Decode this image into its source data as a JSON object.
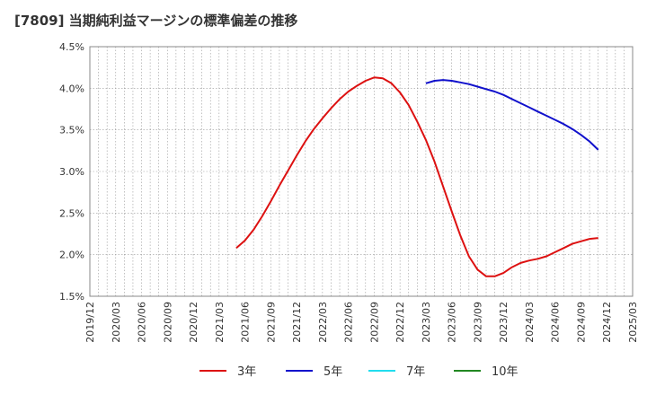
{
  "chart_data": {
    "type": "line",
    "title": "[7809]  当期純利益マージンの標準偏差の推移",
    "xlabel": "",
    "ylabel": "",
    "ylim": [
      1.5,
      4.5
    ],
    "grid": true,
    "legend_position": "bottom",
    "x_ticks": [
      "2019/12",
      "2020/03",
      "2020/06",
      "2020/09",
      "2020/12",
      "2021/03",
      "2021/06",
      "2021/09",
      "2021/12",
      "2022/03",
      "2022/06",
      "2022/09",
      "2022/12",
      "2023/03",
      "2023/06",
      "2023/09",
      "2023/12",
      "2024/03",
      "2024/06",
      "2024/09",
      "2024/12",
      "2025/03"
    ],
    "y_ticks": [
      {
        "value": 1.5,
        "label": "1.5%"
      },
      {
        "value": 2.0,
        "label": "2.0%"
      },
      {
        "value": 2.5,
        "label": "2.5%"
      },
      {
        "value": 3.0,
        "label": "3.0%"
      },
      {
        "value": 3.5,
        "label": "3.5%"
      },
      {
        "value": 4.0,
        "label": "4.0%"
      },
      {
        "value": 4.5,
        "label": "4.5%"
      }
    ],
    "series": [
      {
        "name": "3年",
        "color": "#dd1111",
        "points": [
          [
            "2021/05",
            2.08
          ],
          [
            "2021/06",
            2.17
          ],
          [
            "2021/07",
            2.3
          ],
          [
            "2021/08",
            2.46
          ],
          [
            "2021/09",
            2.64
          ],
          [
            "2021/10",
            2.83
          ],
          [
            "2021/11",
            3.01
          ],
          [
            "2021/12",
            3.19
          ],
          [
            "2022/01",
            3.36
          ],
          [
            "2022/02",
            3.51
          ],
          [
            "2022/03",
            3.64
          ],
          [
            "2022/04",
            3.76
          ],
          [
            "2022/05",
            3.87
          ],
          [
            "2022/06",
            3.96
          ],
          [
            "2022/07",
            4.03
          ],
          [
            "2022/08",
            4.09
          ],
          [
            "2022/09",
            4.13
          ],
          [
            "2022/10",
            4.12
          ],
          [
            "2022/11",
            4.06
          ],
          [
            "2022/12",
            3.95
          ],
          [
            "2023/01",
            3.8
          ],
          [
            "2023/02",
            3.6
          ],
          [
            "2023/03",
            3.38
          ],
          [
            "2023/04",
            3.12
          ],
          [
            "2023/05",
            2.82
          ],
          [
            "2023/06",
            2.52
          ],
          [
            "2023/07",
            2.23
          ],
          [
            "2023/08",
            1.98
          ],
          [
            "2023/09",
            1.82
          ],
          [
            "2023/10",
            1.74
          ],
          [
            "2023/11",
            1.74
          ],
          [
            "2023/12",
            1.78
          ],
          [
            "2024/01",
            1.85
          ],
          [
            "2024/02",
            1.9
          ],
          [
            "2024/03",
            1.93
          ],
          [
            "2024/04",
            1.95
          ],
          [
            "2024/05",
            1.98
          ],
          [
            "2024/06",
            2.03
          ],
          [
            "2024/07",
            2.08
          ],
          [
            "2024/08",
            2.13
          ],
          [
            "2024/09",
            2.16
          ],
          [
            "2024/10",
            2.19
          ],
          [
            "2024/11",
            2.2
          ]
        ]
      },
      {
        "name": "5年",
        "color": "#1111cc",
        "points": [
          [
            "2023/03",
            4.06
          ],
          [
            "2023/04",
            4.09
          ],
          [
            "2023/05",
            4.1
          ],
          [
            "2023/06",
            4.09
          ],
          [
            "2023/07",
            4.07
          ],
          [
            "2023/08",
            4.05
          ],
          [
            "2023/09",
            4.02
          ],
          [
            "2023/10",
            3.99
          ],
          [
            "2023/11",
            3.96
          ],
          [
            "2023/12",
            3.92
          ],
          [
            "2024/01",
            3.87
          ],
          [
            "2024/02",
            3.82
          ],
          [
            "2024/03",
            3.77
          ],
          [
            "2024/04",
            3.72
          ],
          [
            "2024/05",
            3.67
          ],
          [
            "2024/06",
            3.62
          ],
          [
            "2024/07",
            3.57
          ],
          [
            "2024/08",
            3.51
          ],
          [
            "2024/09",
            3.44
          ],
          [
            "2024/10",
            3.36
          ],
          [
            "2024/11",
            3.26
          ]
        ]
      },
      {
        "name": "7年",
        "color": "#22ddee",
        "points": []
      },
      {
        "name": "10年",
        "color": "#228822",
        "points": []
      }
    ]
  }
}
